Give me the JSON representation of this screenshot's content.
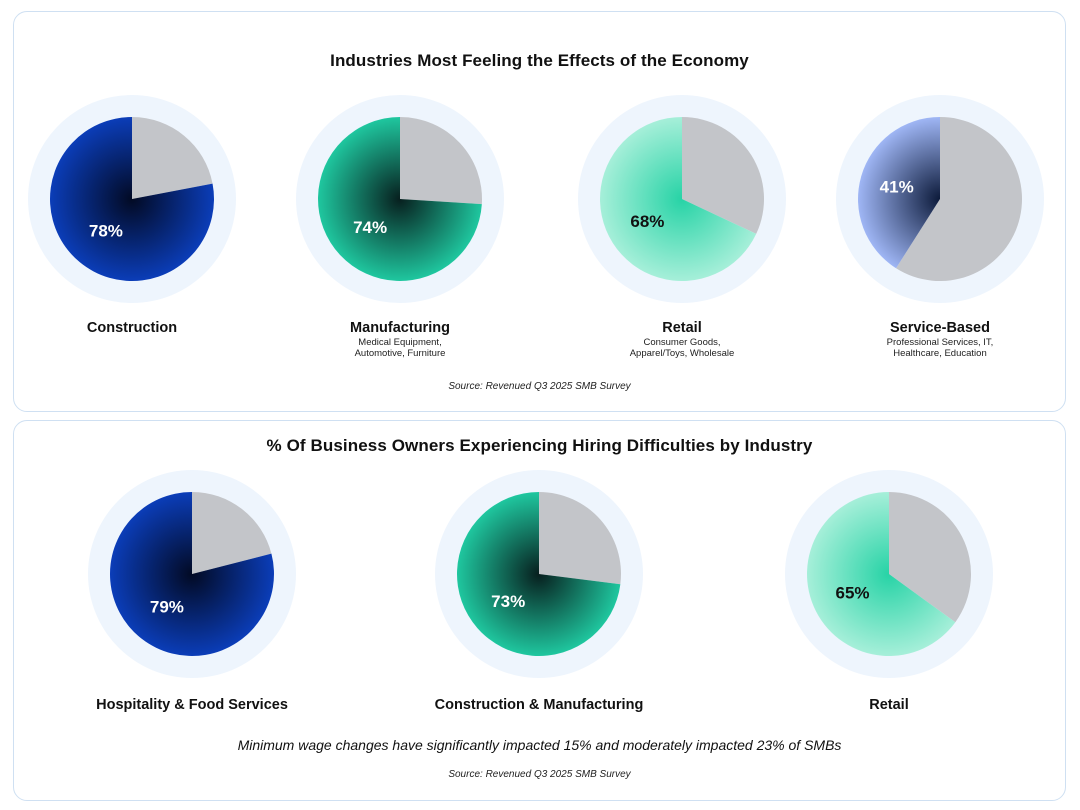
{
  "colors": {
    "gray": "#c3c5c9",
    "navy_outer": "#0b3db8",
    "navy_inner": "#020a24",
    "teal_outer": "#1fc79f",
    "teal_inner": "#071f1e",
    "mint_outer": "#a6efd9",
    "mint_inner": "#27d3a6",
    "periwinkle_outer": "#9fb6f5",
    "periwinkle_inner": "#0c1a3a",
    "halo": "#eef5fd"
  },
  "chart_data": [
    {
      "type": "pie",
      "title": "Industries Most Feeling the Effects of the Economy",
      "source": "Source: Revenued Q3 2025 SMB Survey",
      "items": [
        {
          "label": "Construction",
          "sublabel_lines": [],
          "value": 78,
          "display": "78%",
          "scheme": "navy",
          "label_color": "#ffffff"
        },
        {
          "label": "Manufacturing",
          "sublabel_lines": [
            "Medical Equipment,",
            "Automotive, Furniture"
          ],
          "value": 74,
          "display": "74%",
          "scheme": "teal",
          "label_color": "#ffffff"
        },
        {
          "label": "Retail",
          "sublabel_lines": [
            "Consumer Goods,",
            "Apparel/Toys, Wholesale"
          ],
          "value": 68,
          "display": "68%",
          "scheme": "mint",
          "label_color": "#111111"
        },
        {
          "label": "Service-Based",
          "sublabel_lines": [
            "Professional Services, IT,",
            "Healthcare, Education"
          ],
          "value": 41,
          "display": "41%",
          "scheme": "periwinkle",
          "label_color": "#ffffff"
        }
      ]
    },
    {
      "type": "pie",
      "title": "% Of Business Owners Experiencing Hiring Difficulties by Industry",
      "note": "Minimum wage changes have significantly impacted 15% and moderately impacted 23% of SMBs",
      "source": "Source: Revenued Q3 2025 SMB Survey",
      "items": [
        {
          "label": "Hospitality & Food Services",
          "sublabel_lines": [],
          "value": 79,
          "display": "79%",
          "scheme": "navy",
          "label_color": "#ffffff"
        },
        {
          "label": "Construction & Manufacturing",
          "sublabel_lines": [],
          "value": 73,
          "display": "73%",
          "scheme": "teal",
          "label_color": "#ffffff"
        },
        {
          "label": "Retail",
          "sublabel_lines": [],
          "value": 65,
          "display": "65%",
          "scheme": "mint",
          "label_color": "#111111"
        }
      ]
    }
  ]
}
